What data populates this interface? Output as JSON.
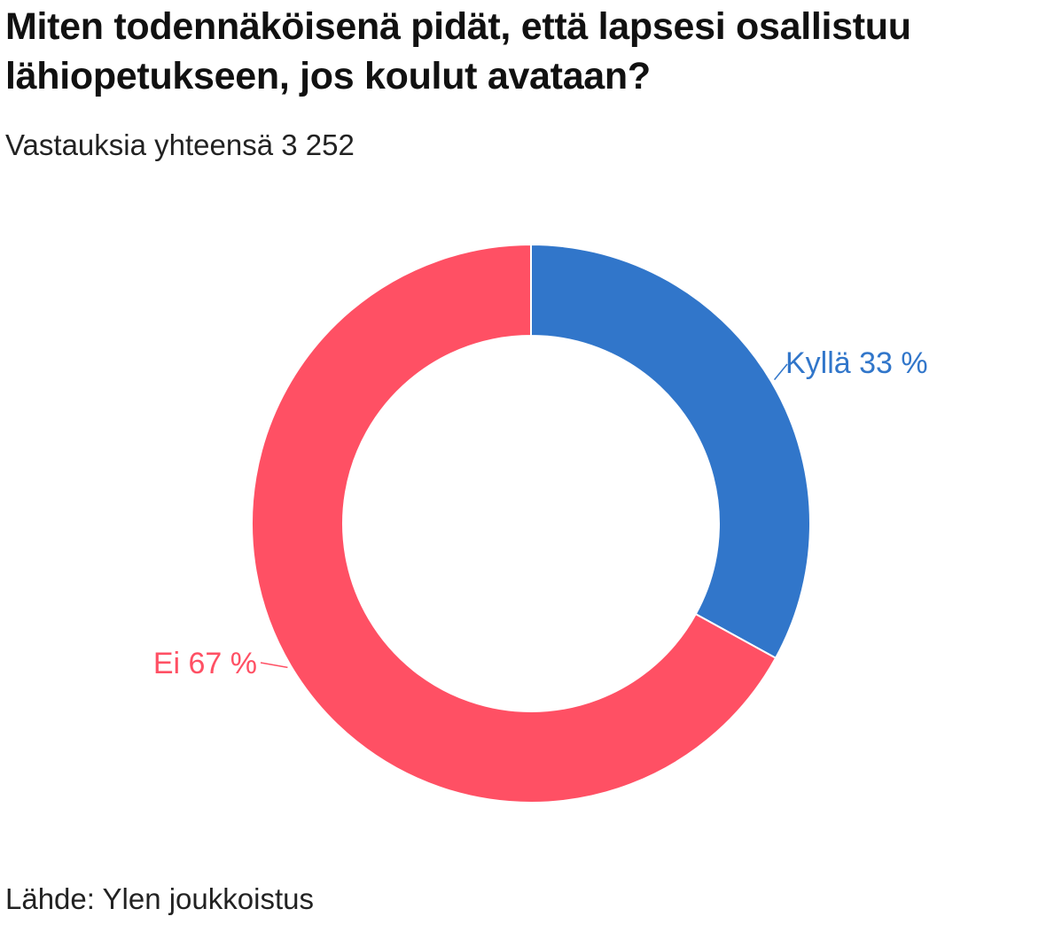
{
  "title": "Miten todennäköisenä pidät, että lapsesi osallistuu lähiopetukseen, jos koulut avataan?",
  "subtitle": "Vastauksia yhteensä 3 252",
  "source": "Lähde: Ylen joukkoistus",
  "chart_data": {
    "type": "pie",
    "variant": "donut",
    "title": "Miten todennäköisenä pidät, että lapsesi osallistuu lähiopetukseen, jos koulut avataan?",
    "subtitle": "Vastauksia yhteensä 3 252",
    "total_responses": 3252,
    "unit": "%",
    "start": "top",
    "direction": "clockwise",
    "slices": [
      {
        "label": "Kyllä",
        "value": 33,
        "display": "Kyllä 33 %",
        "color": "#3176ca"
      },
      {
        "label": "Ei",
        "value": 67,
        "display": "Ei 67 %",
        "color": "#ff5064"
      }
    ]
  }
}
